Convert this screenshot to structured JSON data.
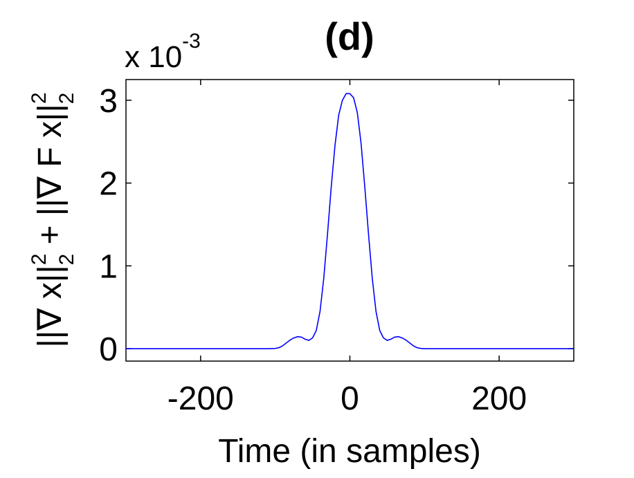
{
  "chart_data": {
    "type": "line",
    "title": "(d)",
    "xlabel": "Time (in samples)",
    "ylabel": {
      "part1": "||∇ x||",
      "sup1": "2",
      "sub1": "2",
      "part2": " + ||∇ F x||",
      "sup2": "2",
      "sub2": "2"
    },
    "y_exponent_label": {
      "base": "x 10",
      "exponent": "-3"
    },
    "xlim": [
      -300,
      300
    ],
    "ylim": [
      -0.15,
      3.25
    ],
    "grid": false,
    "legend": "none",
    "x_ticks": [
      -200,
      0,
      200
    ],
    "x_tick_labels": [
      "-200",
      "0",
      "200"
    ],
    "y_ticks": [
      0,
      1,
      2,
      3
    ],
    "y_tick_labels": [
      "0",
      "1",
      "2",
      "3"
    ],
    "series": [
      {
        "color": "#0000ff",
        "x": [
          -300,
          -200,
          -110,
          -100,
          -95,
          -90,
          -85,
          -80,
          -75,
          -70,
          -65,
          -60,
          -55,
          -50,
          -45,
          -40,
          -35,
          -30,
          -25,
          -20,
          -15,
          -10,
          -5,
          0,
          5,
          10,
          15,
          20,
          25,
          30,
          35,
          40,
          45,
          50,
          55,
          60,
          65,
          70,
          75,
          80,
          85,
          90,
          95,
          100,
          110,
          200,
          300
        ],
        "y": [
          0,
          0,
          0,
          0.003,
          0.012,
          0.035,
          0.07,
          0.105,
          0.13,
          0.145,
          0.14,
          0.115,
          0.1,
          0.13,
          0.22,
          0.45,
          0.85,
          1.38,
          1.95,
          2.45,
          2.82,
          3.0,
          3.08,
          3.08,
          3.03,
          2.85,
          2.48,
          1.95,
          1.38,
          0.85,
          0.45,
          0.22,
          0.13,
          0.1,
          0.115,
          0.14,
          0.145,
          0.13,
          0.105,
          0.07,
          0.035,
          0.012,
          0.003,
          0,
          0,
          0,
          0
        ]
      }
    ]
  }
}
